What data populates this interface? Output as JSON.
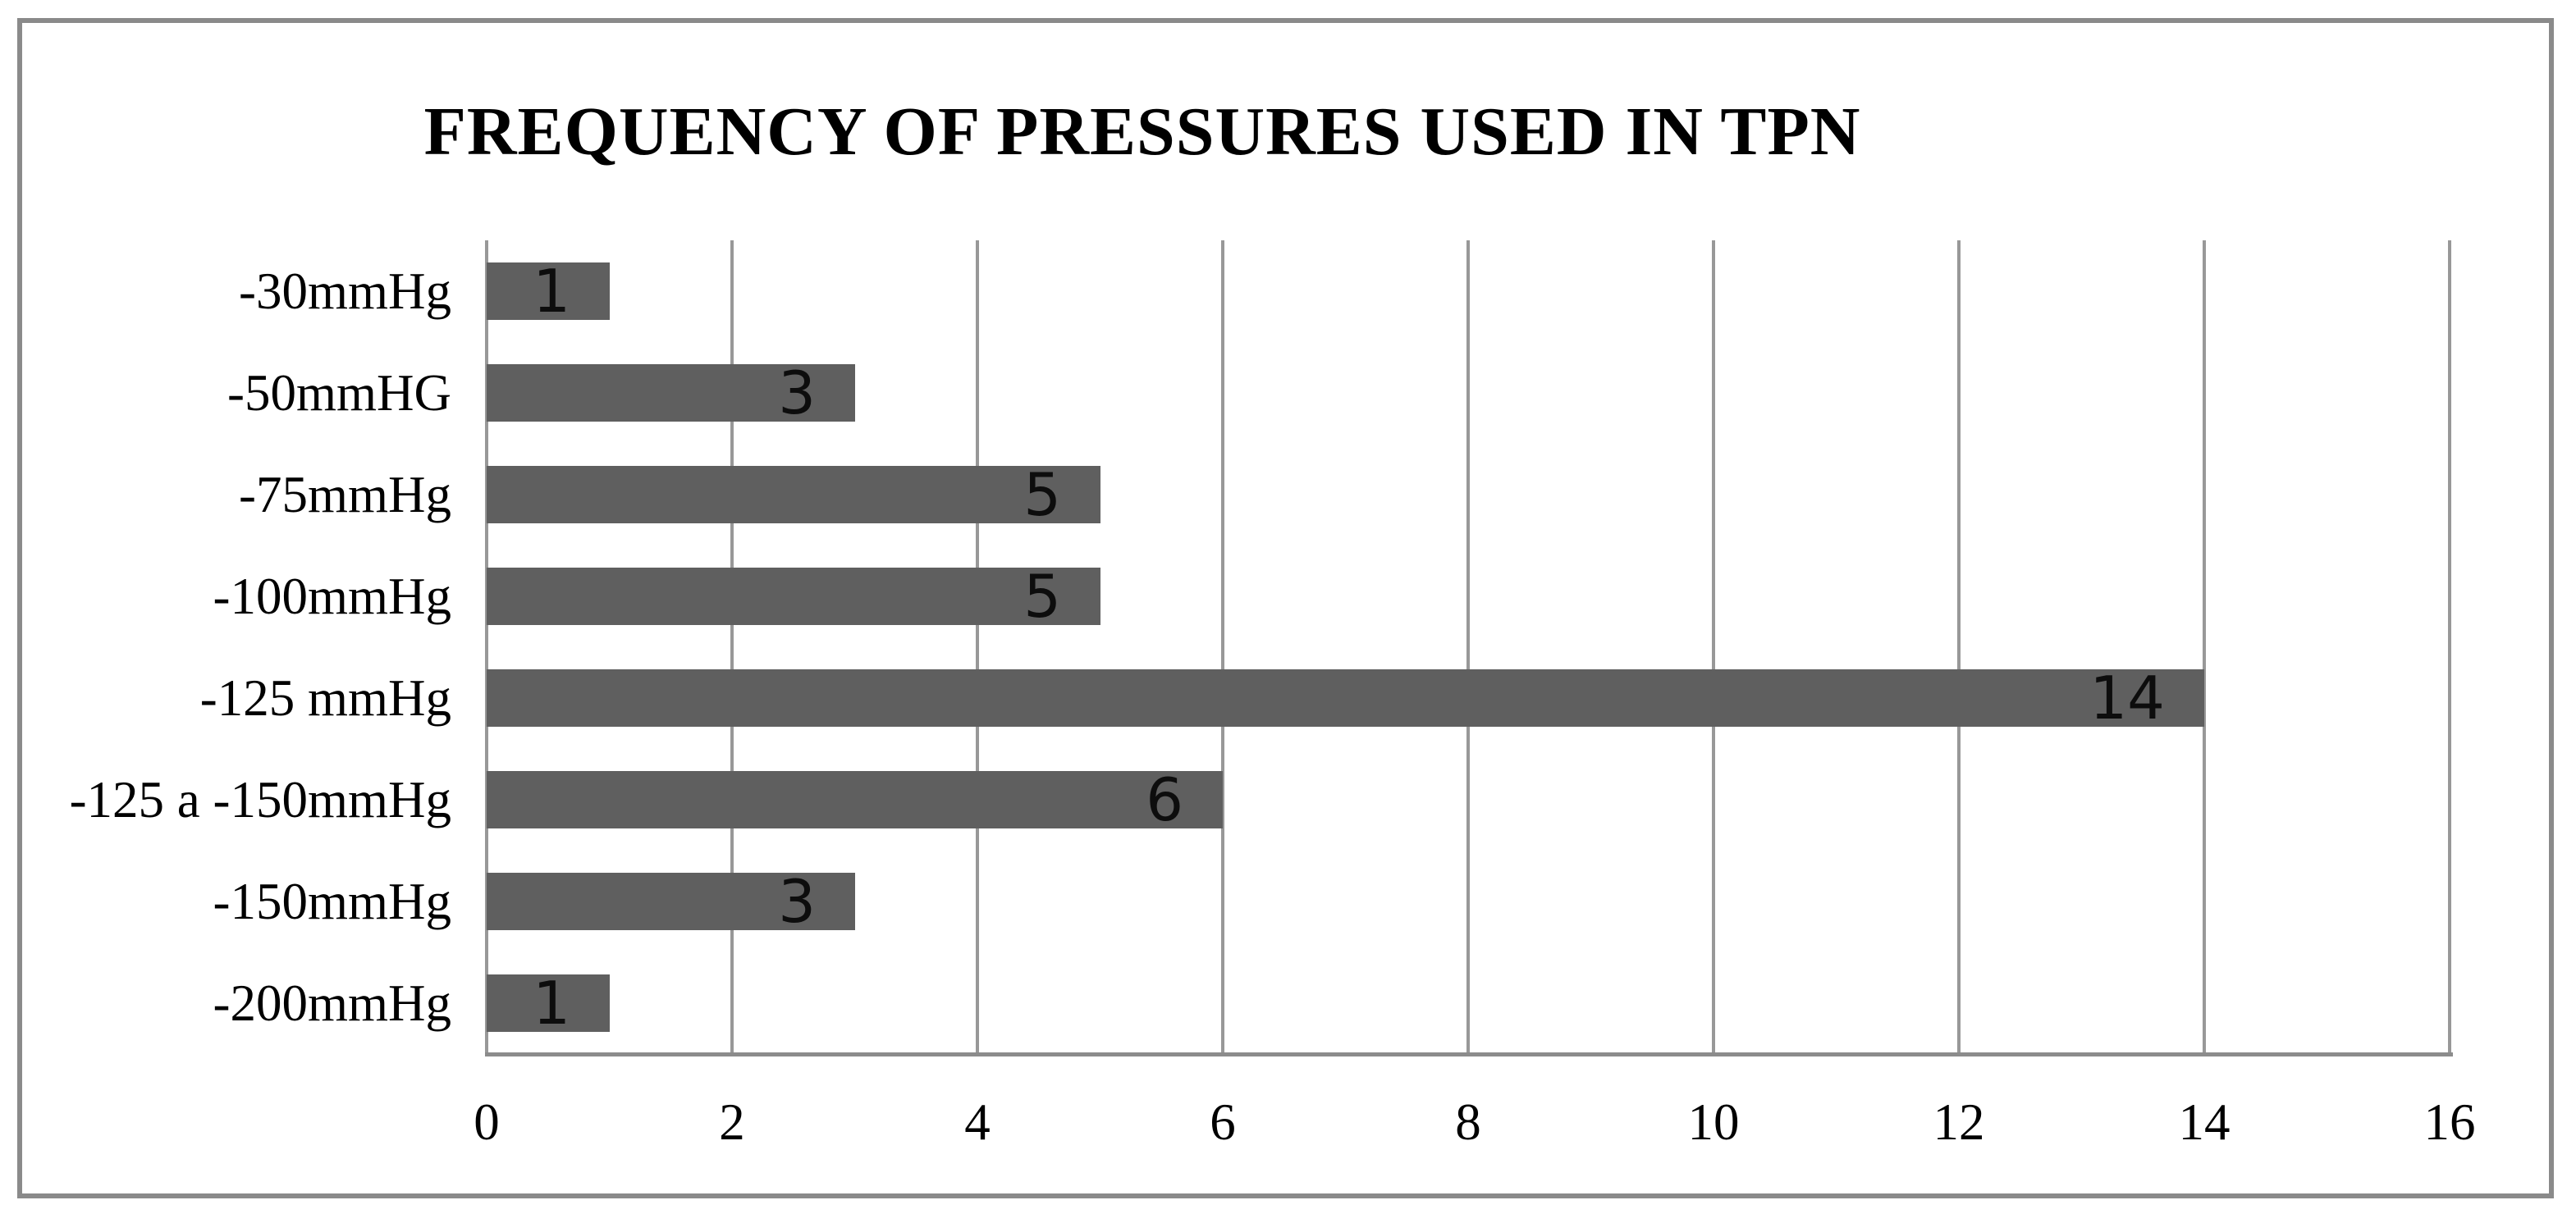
{
  "title": "FREQUENCY OF PRESSURES USED IN TPN",
  "chart_data": {
    "type": "bar",
    "orientation": "horizontal",
    "title": "FREQUENCY OF PRESSURES USED IN TPN",
    "categories": [
      "-30mmHg",
      "-50mmHG",
      "-75mmHg",
      "-100mmHg",
      "-125 mmHg",
      "-125 a -150mmHg",
      "-150mmHg",
      "-200mmHg"
    ],
    "values": [
      1,
      3,
      5,
      5,
      14,
      6,
      3,
      1
    ],
    "x_ticks": [
      "0",
      "2",
      "4",
      "6",
      "8",
      "10",
      "12",
      "14",
      "16"
    ],
    "xlim": [
      0,
      16
    ],
    "xlabel": "",
    "ylabel": "",
    "data_labels": "inside-end",
    "grid": "vertical-only",
    "legend_position": "none",
    "colors": {
      "bar_fill": "#5f5f5f",
      "gridline": "#989898",
      "axis_line": "#8c8c8c",
      "frame_border": "#8a8a8a",
      "text": "#000000",
      "data_label_text": "#0d0d0d",
      "background": "#ffffff"
    }
  }
}
